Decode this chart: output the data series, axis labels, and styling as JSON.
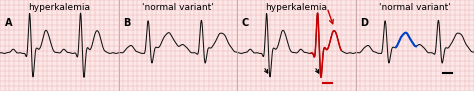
{
  "bg_color": "#fce8e8",
  "grid_color": "#e8b4b4",
  "line_color": "#111111",
  "red_color": "#cc0000",
  "blue_color": "#0044cc",
  "title_A": "hyperkalemia",
  "title_B": "'normal variant'",
  "title_C": "hyperkalemia",
  "title_D": "'normal variant'",
  "label_A": "A",
  "label_B": "B",
  "label_C": "C",
  "label_D": "D",
  "title_fontsize": 6.5,
  "label_fontsize": 7.0,
  "fig_width": 4.74,
  "fig_height": 0.91,
  "dpi": 100
}
